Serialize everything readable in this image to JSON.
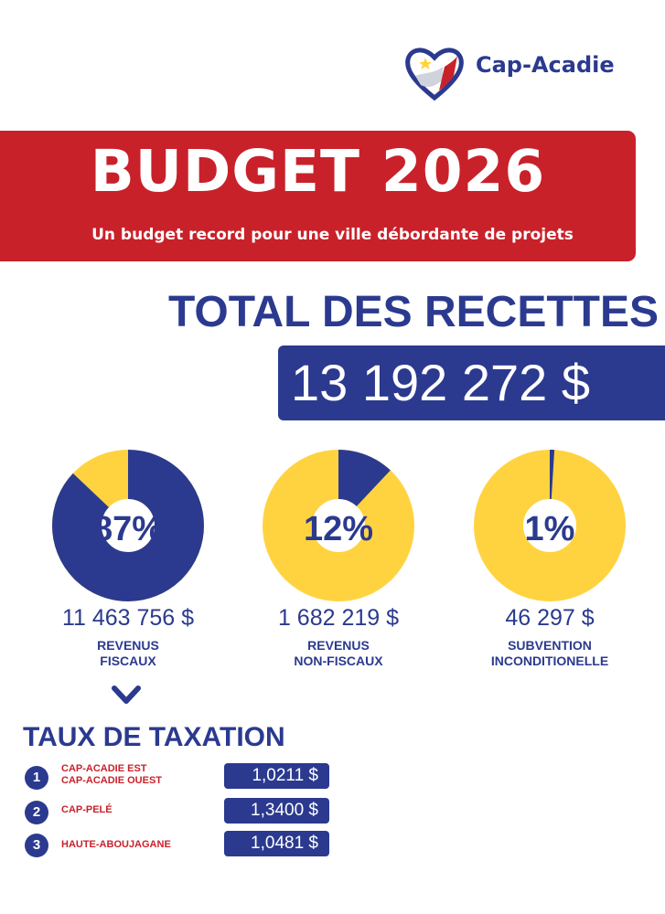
{
  "logo": {
    "name": "Cap-Acadie"
  },
  "banner": {
    "title": "BUDGET 2026",
    "subtitle": "Un budget record pour une ville débordante de projets"
  },
  "totals": {
    "title": "TOTAL DES RECETTES",
    "amount": "13 192 272 $"
  },
  "colors": {
    "navy": "#2b3a8f",
    "yellow": "#ffd340",
    "red": "#c9212a"
  },
  "chart_data": {
    "type": "pie",
    "charts": [
      {
        "percent_label": "87%",
        "amount": "11 463 756 $",
        "label_line1": "REVENUS",
        "label_line2": "FISCAUX",
        "value": 87
      },
      {
        "percent_label": "12%",
        "amount": "1 682 219 $",
        "label_line1": "REVENUS",
        "label_line2": "NON-FISCAUX",
        "value": 12
      },
      {
        "percent_label": "1%",
        "amount": "46 297 $",
        "label_line1": "SUBVENTION",
        "label_line2": "INCONDITIONELLE",
        "value": 1
      }
    ]
  },
  "tax": {
    "title": "TAUX DE TAXATION",
    "rows": [
      {
        "num": "1",
        "name_line1": "CAP-ACADIE EST",
        "name_line2": "CAP-ACADIE OUEST",
        "value": "1,0211 $"
      },
      {
        "num": "2",
        "name_line1": "CAP-PELÉ",
        "name_line2": "",
        "value": "1,3400 $"
      },
      {
        "num": "3",
        "name_line1": "HAUTE-ABOUJAGANE",
        "name_line2": "",
        "value": "1,0481 $"
      }
    ]
  },
  "icons": {
    "chevron": "chevron-down-icon",
    "logo": "heart-flag-logo-icon"
  }
}
